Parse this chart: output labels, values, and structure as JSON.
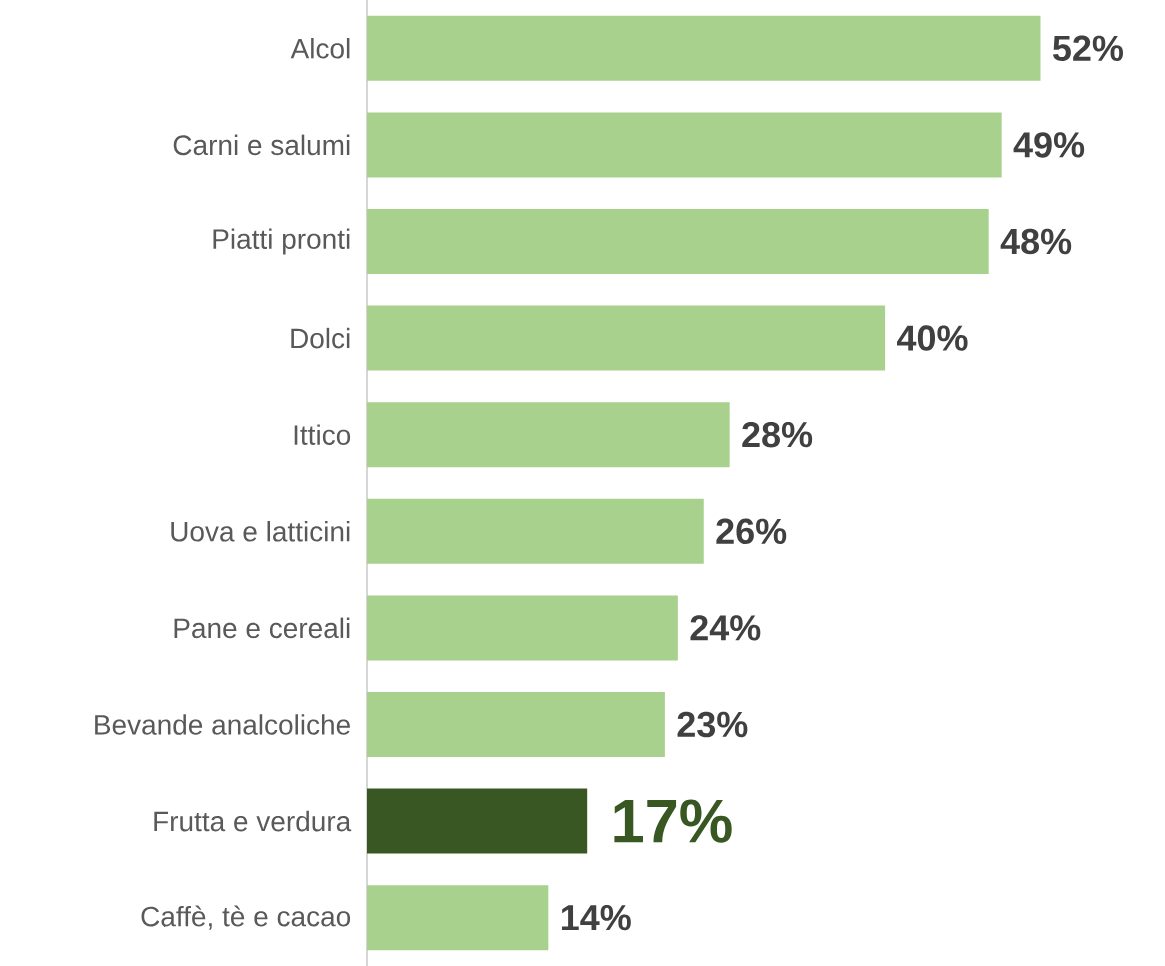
{
  "chart_data": {
    "type": "bar",
    "orientation": "horizontal",
    "categories": [
      "Alcol",
      "Carni e salumi",
      "Piatti pronti",
      "Dolci",
      "Ittico",
      "Uova e latticini",
      "Pane e cereali",
      "Bevande analcoliche",
      "Frutta e verdura",
      "Caffè, tè e cacao"
    ],
    "values": [
      52,
      49,
      48,
      40,
      28,
      26,
      24,
      23,
      17,
      14
    ],
    "value_labels": [
      "52%",
      "49%",
      "48%",
      "40%",
      "28%",
      "26%",
      "24%",
      "23%",
      "17%",
      "14%"
    ],
    "colors": [
      "#a9d18e",
      "#a9d18e",
      "#a9d18e",
      "#a9d18e",
      "#a9d18e",
      "#a9d18e",
      "#a9d18e",
      "#a9d18e",
      "#385723",
      "#a9d18e"
    ]
  }
}
